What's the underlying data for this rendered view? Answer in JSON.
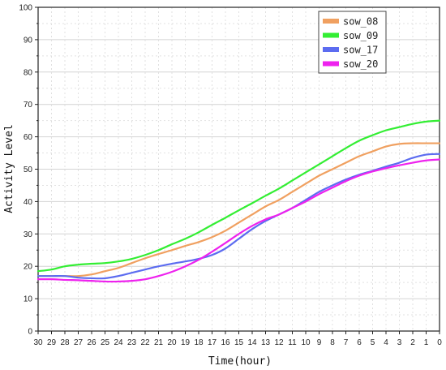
{
  "chart_data": {
    "type": "line",
    "title": "",
    "xlabel": "Time(hour)",
    "ylabel": "Activity Level",
    "xlim": [
      30,
      0
    ],
    "ylim": [
      0,
      100
    ],
    "x_reversed": true,
    "x_ticks": [
      30,
      29,
      28,
      27,
      26,
      25,
      24,
      23,
      22,
      21,
      20,
      19,
      18,
      17,
      16,
      15,
      14,
      13,
      12,
      11,
      10,
      9,
      8,
      7,
      6,
      5,
      4,
      3,
      2,
      1,
      0
    ],
    "y_ticks": [
      0,
      10,
      20,
      30,
      40,
      50,
      60,
      70,
      80,
      90,
      100
    ],
    "grid": true,
    "legend_position": "top-right",
    "x": [
      30,
      29,
      28,
      27,
      26,
      25,
      24,
      23,
      22,
      21,
      20,
      19,
      18,
      17,
      16,
      15,
      14,
      13,
      12,
      11,
      10,
      9,
      8,
      7,
      6,
      5,
      4,
      3,
      2,
      1,
      0
    ],
    "series": [
      {
        "name": "sow_08",
        "color": "#f0a060",
        "values": [
          17.0,
          17.0,
          17.0,
          17.0,
          17.5,
          18.5,
          19.5,
          21.0,
          22.5,
          23.8,
          25.0,
          26.3,
          27.5,
          29.0,
          31.0,
          33.5,
          36.0,
          38.5,
          40.5,
          43.0,
          45.5,
          48.0,
          50.0,
          52.0,
          54.0,
          55.5,
          57.0,
          57.8,
          58.0,
          58.0,
          58.0
        ]
      },
      {
        "name": "sow_09",
        "color": "#33ee33",
        "values": [
          18.5,
          19.0,
          20.0,
          20.5,
          20.8,
          21.0,
          21.5,
          22.3,
          23.5,
          25.0,
          26.8,
          28.5,
          30.5,
          32.8,
          35.0,
          37.3,
          39.5,
          41.8,
          44.0,
          46.5,
          49.0,
          51.5,
          54.0,
          56.5,
          58.8,
          60.5,
          62.0,
          63.0,
          64.0,
          64.7,
          65.0
        ]
      },
      {
        "name": "sow_17",
        "color": "#5c6cf0",
        "values": [
          17.0,
          17.0,
          17.0,
          16.5,
          16.3,
          16.3,
          17.0,
          18.0,
          19.0,
          20.0,
          20.8,
          21.5,
          22.3,
          23.5,
          25.5,
          28.5,
          31.5,
          34.0,
          36.0,
          38.0,
          40.5,
          43.0,
          45.0,
          46.8,
          48.3,
          49.5,
          50.8,
          52.0,
          53.5,
          54.5,
          54.7
        ]
      },
      {
        "name": "sow_20",
        "color": "#ee22ee",
        "values": [
          16.0,
          16.0,
          15.8,
          15.7,
          15.5,
          15.3,
          15.3,
          15.5,
          16.0,
          17.0,
          18.3,
          20.0,
          22.0,
          24.5,
          27.2,
          30.0,
          32.5,
          34.5,
          36.0,
          38.0,
          40.0,
          42.3,
          44.3,
          46.3,
          48.0,
          49.3,
          50.3,
          51.2,
          52.0,
          52.7,
          53.0
        ]
      }
    ]
  }
}
